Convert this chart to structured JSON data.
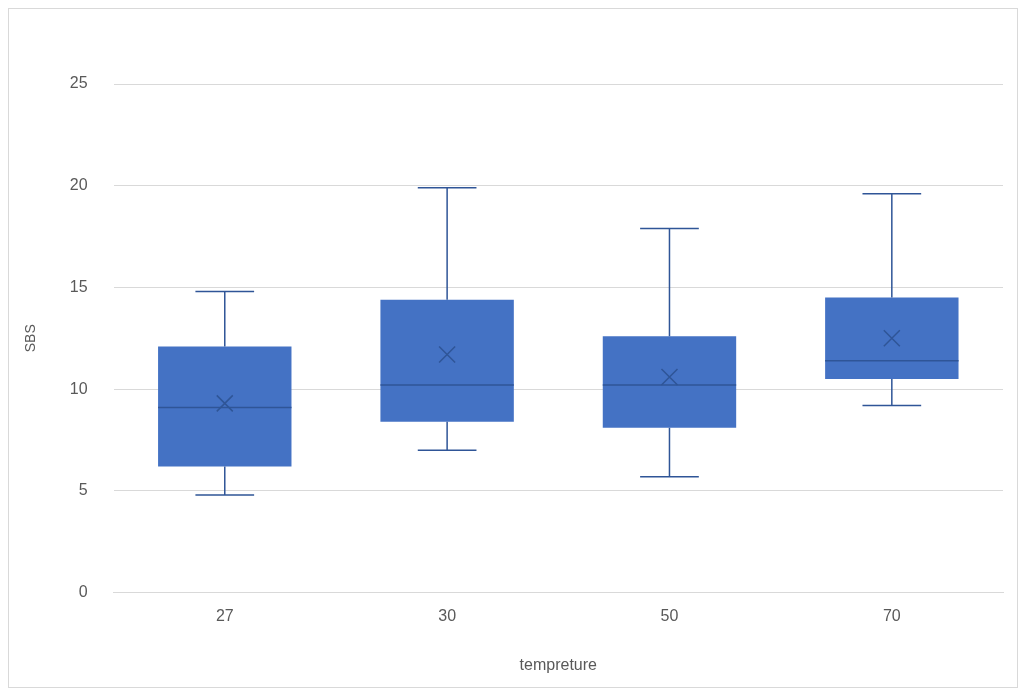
{
  "chart_data": {
    "type": "box",
    "xlabel": "tempreture",
    "ylabel": "SBS",
    "categories": [
      "27",
      "30",
      "50",
      "70"
    ],
    "color": "#4472c4",
    "boxes": [
      {
        "low": 4.8,
        "q1": 6.2,
        "median": 9.1,
        "q3": 12.1,
        "high": 14.8,
        "mean": 9.3
      },
      {
        "low": 7.0,
        "q1": 8.4,
        "median": 10.2,
        "q3": 14.4,
        "high": 19.9,
        "mean": 11.7
      },
      {
        "low": 5.7,
        "q1": 8.1,
        "median": 10.2,
        "q3": 12.6,
        "high": 17.9,
        "mean": 10.6
      },
      {
        "low": 9.2,
        "q1": 10.5,
        "median": 11.4,
        "q3": 14.5,
        "high": 19.6,
        "mean": 12.5
      }
    ],
    "ylim": [
      0,
      25
    ],
    "yticks": [
      0,
      5,
      10,
      15,
      20,
      25
    ],
    "grid": "y",
    "legend": false
  }
}
